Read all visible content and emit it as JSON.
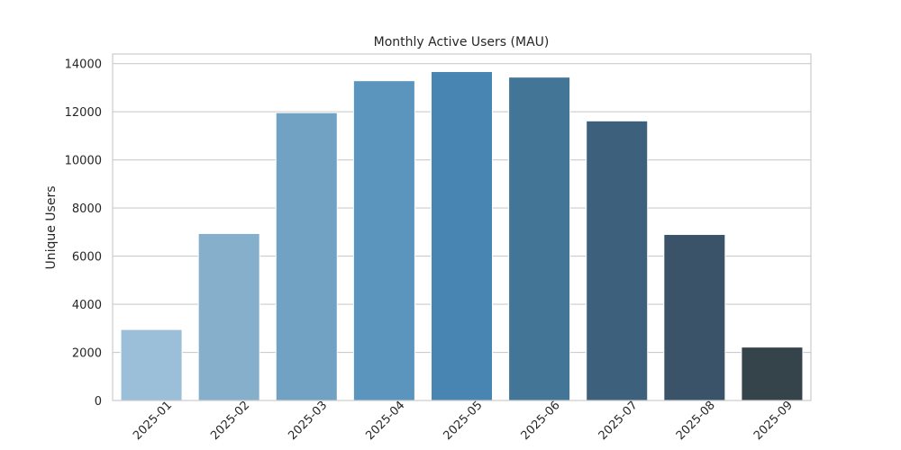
{
  "chart_data": {
    "type": "bar",
    "title": "Monthly Active Users (MAU)",
    "xlabel": "",
    "ylabel": "Unique Users",
    "categories": [
      "2025-01",
      "2025-02",
      "2025-03",
      "2025-04",
      "2025-05",
      "2025-06",
      "2025-07",
      "2025-08",
      "2025-09"
    ],
    "values": [
      2950,
      6940,
      11960,
      13290,
      13670,
      13440,
      11620,
      6900,
      2220
    ],
    "ylim": [
      0,
      14400
    ],
    "yticks": [
      0,
      2000,
      4000,
      6000,
      8000,
      10000,
      12000,
      14000
    ],
    "grid": true,
    "legend": "none",
    "colors": [
      "#9bbfd8",
      "#86afcb",
      "#72a2c3",
      "#5b94bd",
      "#4985b3",
      "#437597",
      "#3d617d",
      "#3b5369",
      "#35434b"
    ],
    "gridColor": "#cccccc",
    "frameColor": "#cccccc"
  }
}
